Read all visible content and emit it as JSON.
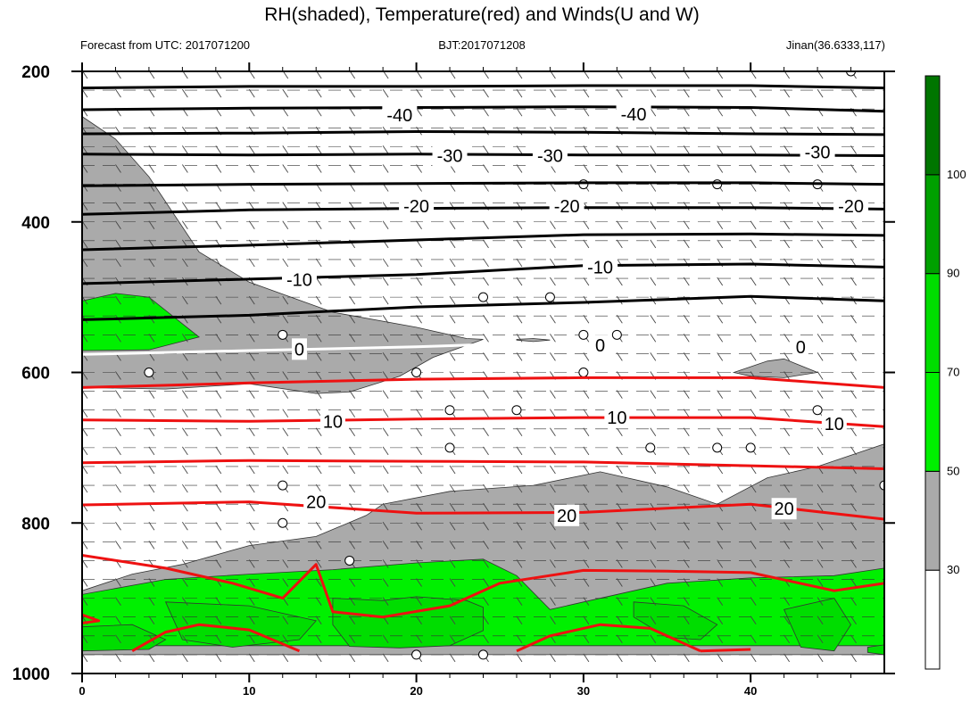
{
  "header": {
    "title": "RH(shaded), Temperature(red) and Winds(U and W)",
    "left_subtitle": "Forecast from UTC: 2017071200",
    "center_subtitle": "BJT:2017071208",
    "right_subtitle": "Jinan(36.6333,117)"
  },
  "chart_data": {
    "type": "contour",
    "title": "RH(shaded), Temperature(red) and Winds(U and W)",
    "x_ticks": [
      "0",
      "10",
      "20",
      "30",
      "40"
    ],
    "y_ticks": [
      "200",
      "400",
      "600",
      "800",
      "1000"
    ],
    "xlim": [
      0,
      48
    ],
    "ylim": [
      200,
      1000
    ],
    "y_inverted": true,
    "colorbar": {
      "levels": [
        "30",
        "50",
        "70",
        "90",
        "100"
      ],
      "colors": [
        "#ffffff",
        "#aaaaaa",
        "#00f000",
        "#00dd00",
        "#00a000",
        "#007500"
      ]
    },
    "colors": {
      "rh_30_50": "#aaaaaa",
      "rh_50_70": "#00f000",
      "rh_70_90": "#00dd00",
      "warm_isotherm": "#ee1111",
      "cold_isotherm": "#000000",
      "zero_isotherm": "#ffffff"
    },
    "temperature_contours": [
      {
        "level": -40,
        "color": "black",
        "series": [
          [
            0,
            222
          ],
          [
            10,
            220
          ],
          [
            20,
            220
          ],
          [
            30,
            219
          ],
          [
            40,
            219
          ],
          [
            48,
            222
          ]
        ]
      },
      {
        "level": -40,
        "color": "black",
        "series": [
          [
            0,
            251
          ],
          [
            10,
            249
          ],
          [
            20,
            248
          ],
          [
            30,
            247
          ],
          [
            40,
            248
          ],
          [
            48,
            253
          ]
        ]
      },
      {
        "level": -40,
        "color": "black",
        "series": [
          [
            0,
            283
          ],
          [
            10,
            282
          ],
          [
            20,
            280
          ],
          [
            30,
            281
          ],
          [
            40,
            283
          ],
          [
            48,
            284
          ]
        ]
      },
      {
        "level": -30,
        "color": "black",
        "series": [
          [
            0,
            310
          ],
          [
            10,
            311
          ],
          [
            20,
            310
          ],
          [
            30,
            311
          ],
          [
            40,
            311
          ],
          [
            48,
            312
          ]
        ]
      },
      {
        "level": -30,
        "color": "black",
        "series": [
          [
            0,
            352
          ],
          [
            10,
            350
          ],
          [
            20,
            349
          ],
          [
            30,
            348
          ],
          [
            40,
            348
          ],
          [
            48,
            350
          ]
        ]
      },
      {
        "level": -20,
        "color": "black",
        "series": [
          [
            0,
            390
          ],
          [
            10,
            384
          ],
          [
            20,
            382
          ],
          [
            30,
            381
          ],
          [
            40,
            381
          ],
          [
            48,
            383
          ]
        ]
      },
      {
        "level": -20,
        "color": "black",
        "series": [
          [
            0,
            437
          ],
          [
            10,
            431
          ],
          [
            20,
            424
          ],
          [
            30,
            417
          ],
          [
            40,
            416
          ],
          [
            48,
            418
          ]
        ]
      },
      {
        "level": -10,
        "color": "black",
        "series": [
          [
            0,
            482
          ],
          [
            10,
            476
          ],
          [
            20,
            470
          ],
          [
            30,
            458
          ],
          [
            40,
            456
          ],
          [
            48,
            460
          ]
        ]
      },
      {
        "level": -10,
        "color": "black",
        "series": [
          [
            0,
            530
          ],
          [
            10,
            524
          ],
          [
            20,
            513
          ],
          [
            30,
            507
          ],
          [
            40,
            499
          ],
          [
            48,
            505
          ]
        ]
      },
      {
        "level": 0,
        "color": "white",
        "series": [
          [
            0,
            576
          ],
          [
            10,
            571
          ],
          [
            20,
            566
          ],
          [
            24,
            563
          ]
        ]
      },
      {
        "level": 10,
        "color": "red",
        "series": [
          [
            0,
            620
          ],
          [
            10,
            614
          ],
          [
            20,
            609
          ],
          [
            30,
            607
          ],
          [
            40,
            607
          ],
          [
            48,
            620
          ]
        ]
      },
      {
        "level": 10,
        "color": "red",
        "series": [
          [
            0,
            663
          ],
          [
            10,
            665
          ],
          [
            20,
            662
          ],
          [
            30,
            660
          ],
          [
            40,
            660
          ],
          [
            48,
            672
          ]
        ]
      },
      {
        "level": 20,
        "color": "red",
        "series": [
          [
            0,
            720
          ],
          [
            10,
            717
          ],
          [
            20,
            718
          ],
          [
            30,
            719
          ],
          [
            40,
            724
          ],
          [
            48,
            728
          ]
        ]
      },
      {
        "level": 20,
        "color": "red",
        "series": [
          [
            0,
            776
          ],
          [
            10,
            772
          ],
          [
            20,
            787
          ],
          [
            30,
            786
          ],
          [
            40,
            775
          ],
          [
            48,
            795
          ]
        ]
      },
      {
        "level": 20,
        "color": "red",
        "series": [
          [
            0,
            843
          ],
          [
            5,
            860
          ],
          [
            9,
            880
          ],
          [
            12,
            900
          ],
          [
            14,
            855
          ],
          [
            15,
            918
          ],
          [
            18,
            925
          ],
          [
            22,
            910
          ],
          [
            25,
            880
          ],
          [
            30,
            863
          ],
          [
            35,
            864
          ],
          [
            40,
            866
          ],
          [
            45,
            890
          ],
          [
            48,
            880
          ]
        ]
      },
      {
        "level": 20,
        "color": "red",
        "series": [
          [
            0,
            933
          ],
          [
            1,
            930
          ],
          [
            0,
            922
          ]
        ]
      },
      {
        "level": 20,
        "color": "red",
        "series": [
          [
            3,
            970
          ],
          [
            5,
            945
          ],
          [
            7,
            935
          ],
          [
            10,
            942
          ],
          [
            13,
            970
          ]
        ]
      },
      {
        "level": 20,
        "color": "red",
        "series": [
          [
            26,
            970
          ],
          [
            28,
            950
          ],
          [
            31,
            935
          ],
          [
            34,
            940
          ],
          [
            37,
            970
          ]
        ]
      },
      {
        "level": 20,
        "color": "red",
        "series": [
          [
            37,
            970
          ],
          [
            40,
            968
          ]
        ]
      }
    ],
    "contour_labels": [
      {
        "text": "-40",
        "x": 19,
        "y": 258
      },
      {
        "text": "-40",
        "x": 33,
        "y": 257
      },
      {
        "text": "-30",
        "x": 22,
        "y": 312
      },
      {
        "text": "-30",
        "x": 28,
        "y": 312
      },
      {
        "text": "-30",
        "x": 44,
        "y": 307
      },
      {
        "text": "-20",
        "x": 20,
        "y": 379
      },
      {
        "text": "-20",
        "x": 29,
        "y": 379
      },
      {
        "text": "-20",
        "x": 46,
        "y": 379
      },
      {
        "text": "-10",
        "x": 13,
        "y": 477
      },
      {
        "text": "-10",
        "x": 31,
        "y": 460
      },
      {
        "text": "0",
        "x": 13,
        "y": 569
      },
      {
        "text": "0",
        "x": 31,
        "y": 564
      },
      {
        "text": "0",
        "x": 43,
        "y": 566
      },
      {
        "text": "10",
        "x": 15,
        "y": 665
      },
      {
        "text": "10",
        "x": 32,
        "y": 660
      },
      {
        "text": "10",
        "x": 45,
        "y": 668
      },
      {
        "text": "20",
        "x": 14,
        "y": 772
      },
      {
        "text": "20",
        "x": 29,
        "y": 790
      },
      {
        "text": "20",
        "x": 42,
        "y": 781
      }
    ],
    "rh_regions": [
      {
        "band": "30-50",
        "polygon": [
          [
            0,
            260
          ],
          [
            2,
            290
          ],
          [
            4,
            340
          ],
          [
            7,
            440
          ],
          [
            10,
            480
          ],
          [
            15,
            520
          ],
          [
            20,
            540
          ],
          [
            23,
            555
          ],
          [
            24,
            556
          ],
          [
            21,
            580
          ],
          [
            19,
            605
          ],
          [
            16,
            626
          ],
          [
            14,
            628
          ],
          [
            10,
            615
          ],
          [
            5,
            622
          ],
          [
            0,
            620
          ]
        ]
      },
      {
        "band": "30-50",
        "polygon": [
          [
            26,
            556
          ],
          [
            27,
            555
          ],
          [
            28,
            557
          ],
          [
            27,
            559
          ],
          [
            26,
            557
          ]
        ]
      },
      {
        "band": "30-50",
        "polygon": [
          [
            39,
            600
          ],
          [
            41,
            585
          ],
          [
            42,
            582
          ],
          [
            44,
            600
          ],
          [
            42,
            607
          ],
          [
            40,
            605
          ]
        ]
      },
      {
        "band": "30-50",
        "polygon": [
          [
            0,
            890
          ],
          [
            3,
            868
          ],
          [
            6,
            855
          ],
          [
            10,
            830
          ],
          [
            14,
            818
          ],
          [
            17,
            790
          ],
          [
            18,
            775
          ],
          [
            22,
            758
          ],
          [
            27,
            750
          ],
          [
            31,
            732
          ],
          [
            35,
            752
          ],
          [
            38,
            775
          ],
          [
            41,
            740
          ],
          [
            44,
            725
          ],
          [
            48,
            695
          ],
          [
            48,
            975
          ],
          [
            0,
            975
          ]
        ]
      },
      {
        "band": "50-70",
        "polygon": [
          [
            0,
            505
          ],
          [
            2,
            495
          ],
          [
            4,
            500
          ],
          [
            7,
            553
          ],
          [
            4,
            570
          ],
          [
            0,
            571
          ]
        ]
      },
      {
        "band": "50-70",
        "polygon": [
          [
            0,
            895
          ],
          [
            5,
            875
          ],
          [
            10,
            868
          ],
          [
            15,
            862
          ],
          [
            20,
            853
          ],
          [
            24,
            848
          ],
          [
            26,
            870
          ],
          [
            28,
            915
          ],
          [
            30,
            905
          ],
          [
            35,
            880
          ],
          [
            40,
            873
          ],
          [
            45,
            870
          ],
          [
            48,
            860
          ],
          [
            48,
            963
          ],
          [
            0,
            963
          ]
        ]
      },
      {
        "band": "70-90",
        "polygon": [
          [
            0,
            938
          ],
          [
            3,
            935
          ],
          [
            5,
            955
          ],
          [
            4,
            968
          ],
          [
            0,
            970
          ]
        ]
      },
      {
        "band": "70-90",
        "polygon": [
          [
            5,
            905
          ],
          [
            10,
            910
          ],
          [
            14,
            930
          ],
          [
            13,
            955
          ],
          [
            9,
            965
          ],
          [
            6,
            955
          ]
        ]
      },
      {
        "band": "70-90",
        "polygon": [
          [
            15,
            900
          ],
          [
            18,
            903
          ],
          [
            20,
            898
          ],
          [
            23,
            903
          ],
          [
            24,
            912
          ],
          [
            24,
            943
          ],
          [
            22,
            963
          ],
          [
            19,
            966
          ],
          [
            16,
            964
          ],
          [
            15,
            935
          ]
        ]
      },
      {
        "band": "70-90",
        "polygon": [
          [
            33,
            905
          ],
          [
            36,
            910
          ],
          [
            38,
            935
          ],
          [
            37,
            955
          ],
          [
            35,
            952
          ],
          [
            33,
            925
          ]
        ]
      },
      {
        "band": "70-90",
        "polygon": [
          [
            42,
            915
          ],
          [
            45,
            900
          ],
          [
            46,
            935
          ],
          [
            45,
            970
          ],
          [
            43,
            965
          ]
        ]
      },
      {
        "band": "70-90",
        "polygon": [
          [
            47,
            965
          ],
          [
            48,
            962
          ],
          [
            48,
            975
          ],
          [
            47,
            972
          ]
        ]
      }
    ],
    "wind_barb_levels": [
      200,
      225,
      250,
      275,
      300,
      325,
      350,
      375,
      400,
      425,
      450,
      475,
      500,
      525,
      550,
      575,
      600,
      625,
      650,
      675,
      700,
      725,
      750,
      775,
      800,
      825,
      850,
      875,
      900,
      925,
      950,
      975
    ],
    "calm_markers": [
      {
        "x": 46,
        "y": 200
      },
      {
        "x": 30,
        "y": 350
      },
      {
        "x": 38,
        "y": 350
      },
      {
        "x": 44,
        "y": 350
      },
      {
        "x": 24,
        "y": 500
      },
      {
        "x": 28,
        "y": 500
      },
      {
        "x": 12,
        "y": 550
      },
      {
        "x": 30,
        "y": 550
      },
      {
        "x": 32,
        "y": 550
      },
      {
        "x": 4,
        "y": 600
      },
      {
        "x": 20,
        "y": 600
      },
      {
        "x": 30,
        "y": 600
      },
      {
        "x": 22,
        "y": 650
      },
      {
        "x": 26,
        "y": 650
      },
      {
        "x": 44,
        "y": 650
      },
      {
        "x": 22,
        "y": 700
      },
      {
        "x": 34,
        "y": 700
      },
      {
        "x": 38,
        "y": 700
      },
      {
        "x": 40,
        "y": 700
      },
      {
        "x": 12,
        "y": 750
      },
      {
        "x": 48,
        "y": 750
      },
      {
        "x": 12,
        "y": 800
      },
      {
        "x": 16,
        "y": 850
      },
      {
        "x": 20,
        "y": 975
      },
      {
        "x": 24,
        "y": 975
      }
    ]
  }
}
